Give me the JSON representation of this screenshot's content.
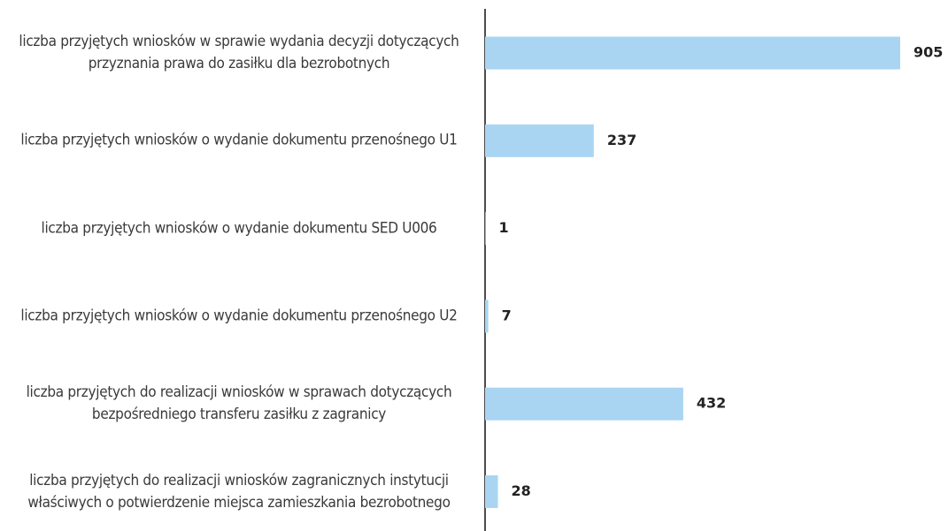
{
  "chart_data": {
    "type": "bar",
    "orientation": "horizontal",
    "categories": [
      "liczba przyjętych wniosków w sprawie wydania decyzji dotyczących przyznania prawa do zasiłku dla bezrobotnych",
      "liczba przyjętych wniosków o wydanie dokumentu przenośnego U1",
      "liczba przyjętych wniosków o wydanie dokumentu SED U006",
      "liczba przyjętych wniosków o wydanie dokumentu przenośnego U2",
      "liczba przyjętych do realizacji wniosków w sprawach dotyczących bezpośredniego transferu zasiłku z zagranicy",
      "liczba przyjętych do realizacji wniosków zagranicznych instytucji właściwych o potwierdzenie miejsca zamieszkania bezrobotnego"
    ],
    "values": [
      905,
      237,
      1,
      7,
      432,
      28
    ],
    "color": "#a9d5f3"
  }
}
